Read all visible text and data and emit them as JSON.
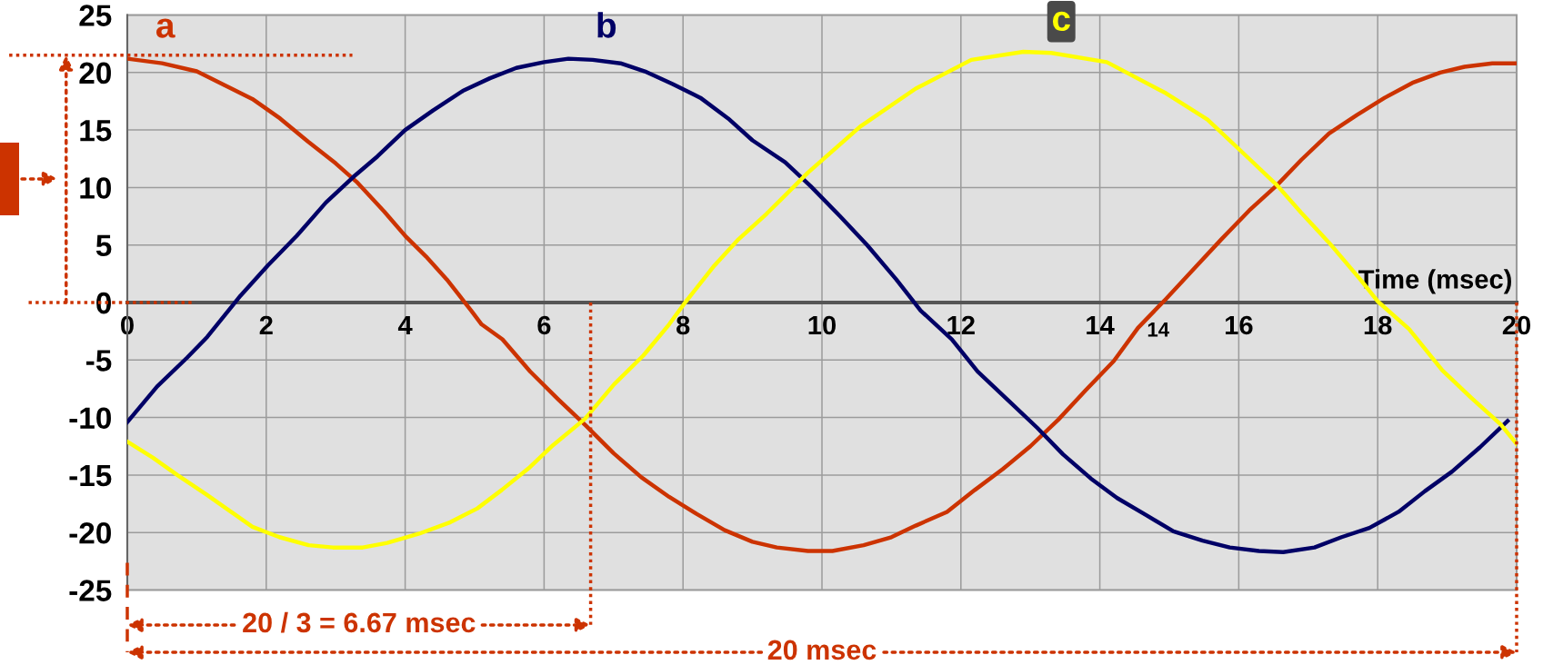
{
  "chart_data": {
    "type": "line",
    "xlabel": "Time (msec)",
    "xlim": [
      0,
      20
    ],
    "xticks": [
      0,
      2,
      4,
      6,
      8,
      10,
      12,
      14,
      16,
      18,
      20
    ],
    "ylim": [
      -25,
      25
    ],
    "yticks": [
      -25,
      -20,
      -15,
      -10,
      -5,
      0,
      5,
      10,
      15,
      20,
      25
    ],
    "grid": true,
    "line_style": "solid",
    "series": [
      {
        "name": "a",
        "color": "#cc3300",
        "x": [
          0,
          0.5,
          1.0,
          1.4,
          1.8,
          2.2,
          2.6,
          3.0,
          3.3,
          3.7,
          4.0,
          4.3,
          4.6,
          4.95,
          5.1,
          5.4,
          5.8,
          6.2,
          6.6,
          7.0,
          7.4,
          7.8,
          8.2,
          8.6,
          9.0,
          9.35,
          9.8,
          10.15,
          10.6,
          11.0,
          11.35,
          11.8,
          12.2,
          12.6,
          13.0,
          13.4,
          13.8,
          14.2,
          14.55,
          14.95,
          15.35,
          15.75,
          16.15,
          16.55,
          16.9,
          17.3,
          17.7,
          18.1,
          18.5,
          18.9,
          19.25,
          19.65,
          20.0
        ],
        "values": [
          21.2,
          20.8,
          20.1,
          18.9,
          17.7,
          16.0,
          14.0,
          12.1,
          10.5,
          7.9,
          5.8,
          4.0,
          2.0,
          -0.7,
          -1.9,
          -3.2,
          -6.0,
          -8.4,
          -10.7,
          -13.1,
          -15.2,
          -16.9,
          -18.4,
          -19.8,
          -20.8,
          -21.3,
          -21.6,
          -21.6,
          -21.1,
          -20.4,
          -19.4,
          -18.2,
          -16.3,
          -14.5,
          -12.5,
          -10.2,
          -7.6,
          -5.1,
          -2.2,
          0.3,
          2.9,
          5.5,
          8.0,
          10.2,
          12.4,
          14.7,
          16.3,
          17.8,
          19.1,
          20.0,
          20.5,
          20.8,
          20.8
        ]
      },
      {
        "name": "b",
        "color": "#000066",
        "x": [
          0,
          0.43,
          0.86,
          1.15,
          1.63,
          2.02,
          2.44,
          2.86,
          3.25,
          3.6,
          4.0,
          4.4,
          4.83,
          5.22,
          5.6,
          6.0,
          6.35,
          6.7,
          7.1,
          7.45,
          7.85,
          8.25,
          8.65,
          9.0,
          9.47,
          9.84,
          10.26,
          10.65,
          11.07,
          11.42,
          11.87,
          12.24,
          12.68,
          13.1,
          13.47,
          13.87,
          14.25,
          14.67,
          15.06,
          15.48,
          15.87,
          16.29,
          16.64,
          17.09,
          17.48,
          17.88,
          18.3,
          18.68,
          19.07,
          19.47,
          19.87
        ],
        "values": [
          -10.4,
          -7.3,
          -4.8,
          -3.0,
          0.6,
          3.2,
          5.8,
          8.7,
          10.9,
          12.7,
          15.0,
          16.7,
          18.4,
          19.5,
          20.4,
          20.9,
          21.2,
          21.1,
          20.8,
          20.1,
          19.0,
          17.8,
          16.0,
          14.1,
          12.2,
          10.1,
          7.5,
          5.0,
          2.0,
          -0.7,
          -3.2,
          -6.0,
          -8.5,
          -10.9,
          -13.2,
          -15.3,
          -17.0,
          -18.5,
          -19.9,
          -20.7,
          -21.3,
          -21.6,
          -21.7,
          -21.3,
          -20.4,
          -19.6,
          -18.2,
          -16.4,
          -14.7,
          -12.6,
          -10.3
        ]
      },
      {
        "name": "c",
        "color": "#ffff00",
        "x": [
          0,
          0.37,
          0.72,
          1.14,
          1.8,
          2.19,
          2.61,
          2.96,
          3.39,
          3.74,
          4.2,
          4.65,
          5.04,
          5.39,
          5.78,
          6.13,
          6.59,
          7.01,
          7.43,
          7.8,
          8.03,
          8.45,
          8.8,
          9.2,
          9.4,
          9.8,
          10.55,
          11.35,
          12.15,
          12.9,
          13.3,
          14.1,
          14.95,
          15.55,
          16.15,
          16.55,
          16.9,
          17.3,
          17.75,
          18.0,
          18.45,
          18.93,
          19.35,
          19.77,
          20.0
        ],
        "values": [
          -12.1,
          -13.5,
          -15.0,
          -16.7,
          -19.5,
          -20.4,
          -21.1,
          -21.3,
          -21.3,
          -20.9,
          -20.1,
          -19.1,
          -17.9,
          -16.3,
          -14.4,
          -12.4,
          -10.1,
          -7.1,
          -4.6,
          -1.9,
          0.0,
          3.2,
          5.5,
          7.7,
          8.9,
          11.3,
          15.3,
          18.6,
          21.1,
          21.8,
          21.7,
          20.9,
          18.2,
          15.9,
          12.5,
          10.2,
          7.8,
          5.2,
          2.0,
          0.1,
          -2.3,
          -5.9,
          -8.3,
          -10.6,
          -12.3
        ]
      }
    ],
    "ref_lines": [
      {
        "axis": "y",
        "value": 21.5,
        "color": "#cc3300",
        "line_style": "dotted"
      },
      {
        "axis": "x",
        "value": 6.67,
        "label": "20 / 3 = 6.67 msec",
        "color": "#cc3300",
        "line_style": "dotted"
      },
      {
        "axis": "x",
        "value": 20,
        "label": "20 msec",
        "color": "#cc3300",
        "line_style": "dotted"
      }
    ],
    "annotations": [
      "14"
    ]
  }
}
